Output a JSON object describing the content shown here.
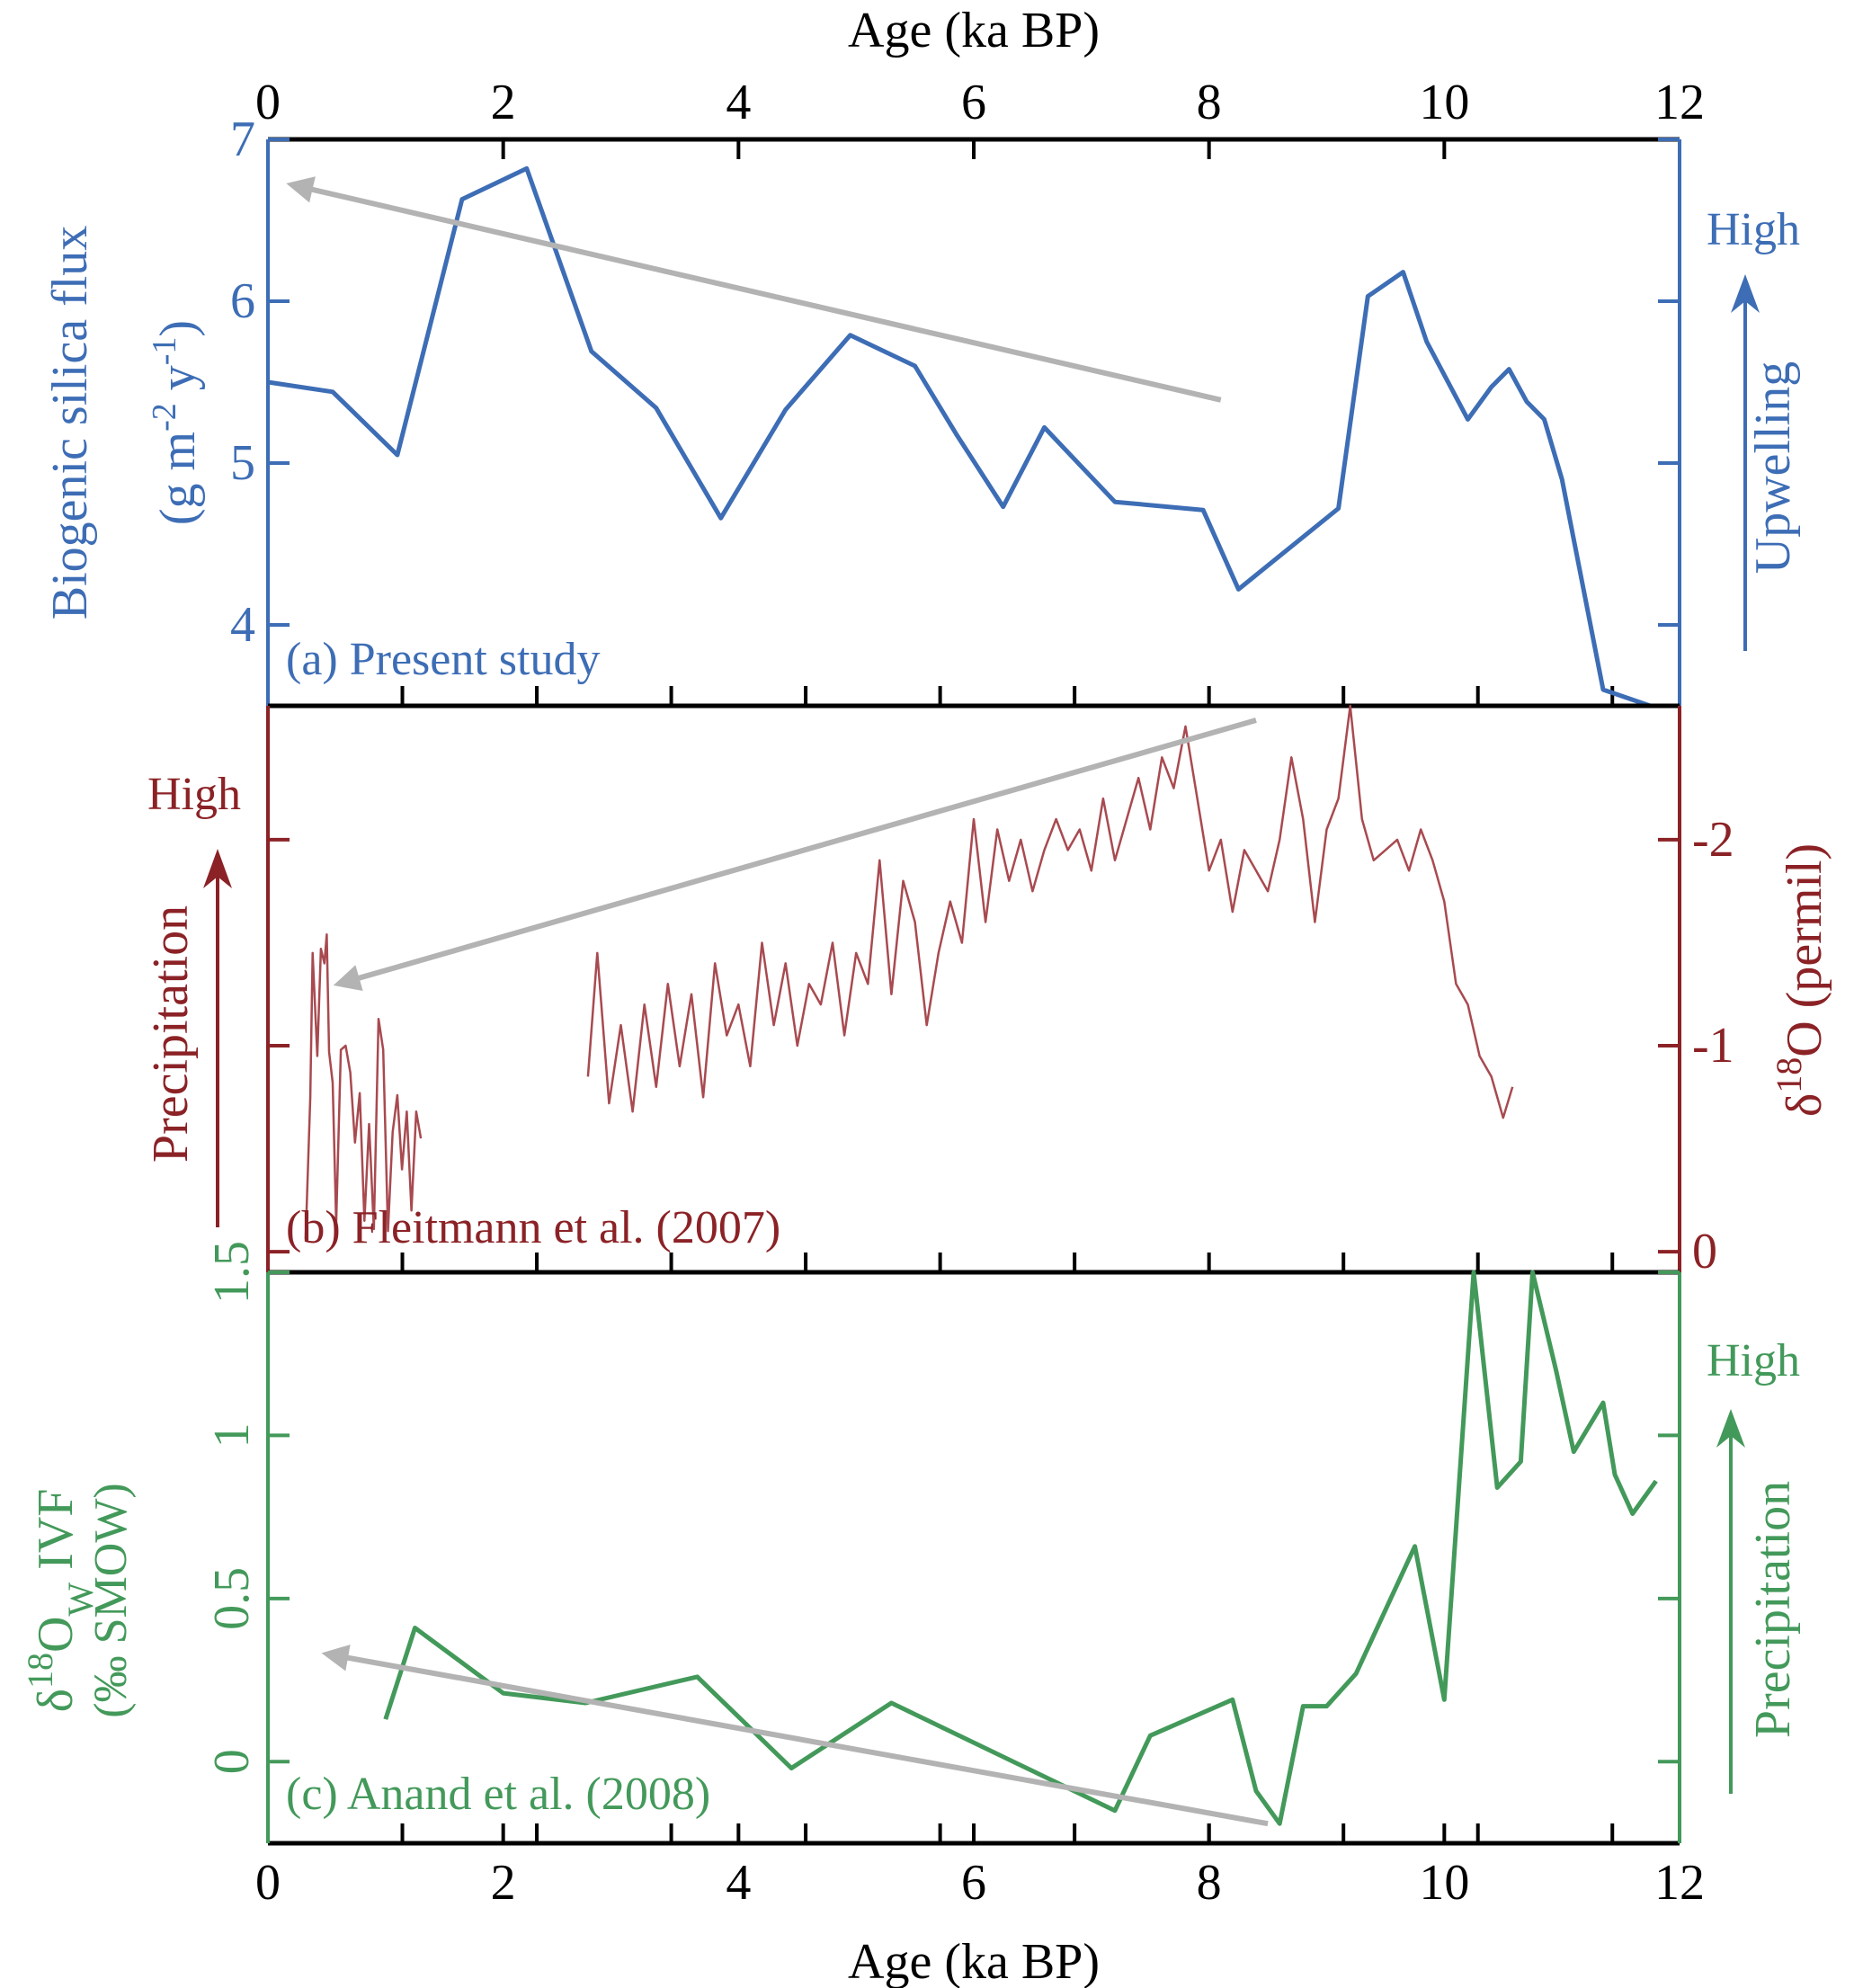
{
  "chart_data": {
    "type": "line",
    "layout": "three vertically stacked panels sharing the age axis",
    "x_axis": {
      "label": "Age (ka BP)",
      "range": [
        0,
        12
      ],
      "ticks": [
        0,
        2,
        4,
        6,
        8,
        10,
        12
      ],
      "tick_labels": [
        "0",
        "2",
        "4",
        "6",
        "8",
        "10",
        "12"
      ]
    },
    "panels": [
      {
        "id": "a",
        "panel_label": "(a) Present study",
        "color": "#3d6db5",
        "ylabel_lines": [
          "Biogenic silica flux",
          "(g m-2 y-1)"
        ],
        "ylabel_main": "Biogenic silica flux",
        "ylabel_unit_prefix": "(g m",
        "ylabel_unit_sup1": "-2",
        "ylabel_unit_mid": " y",
        "ylabel_unit_sup2": "-1",
        "ylabel_unit_suffix": ")",
        "y_axis_side": "left",
        "ylim": [
          3.5,
          7
        ],
        "yticks": [
          4,
          5,
          6,
          7
        ],
        "ytick_labels": [
          "4",
          "5",
          "6",
          "7"
        ],
        "indicator": {
          "side": "right",
          "text": "Upwelling",
          "high": "High"
        },
        "trend_arrow": {
          "from": [
            8.1,
            5.39
          ],
          "to": [
            0.2,
            6.72
          ],
          "color": "#b3b3b3"
        },
        "series": [
          {
            "name": "Biogenic silica flux",
            "x": [
              0.0,
              0.55,
              1.1,
              1.65,
              2.2,
              2.75,
              3.3,
              3.85,
              4.4,
              4.95,
              5.5,
              5.85,
              6.25,
              6.6,
              7.2,
              7.95,
              8.25,
              9.1,
              9.35,
              9.65,
              9.85,
              10.2,
              10.4,
              10.55,
              10.7,
              10.85,
              11.0,
              11.35,
              11.75
            ],
            "y": [
              5.5,
              5.44,
              5.05,
              6.63,
              6.82,
              5.69,
              5.34,
              4.66,
              5.33,
              5.79,
              5.6,
              5.18,
              4.73,
              5.22,
              4.76,
              4.71,
              4.22,
              4.72,
              6.03,
              6.18,
              5.75,
              5.27,
              5.47,
              5.58,
              5.38,
              5.27,
              4.9,
              3.6,
              3.5
            ]
          }
        ]
      },
      {
        "id": "b",
        "panel_label": "(b) Fleitmann et al. (2007)",
        "color": "#8b2226",
        "line_color": "#a84a50",
        "ylabel_main": "δ18O (permil)",
        "ylabel_delta": "δ",
        "ylabel_sup": "18",
        "ylabel_rest": "O (permil)",
        "y_axis_side": "right",
        "y_inverted": true,
        "ylim": [
          0.1,
          -2.65
        ],
        "yticks": [
          0,
          -1,
          -2
        ],
        "ytick_labels": [
          "0",
          "-1",
          "-2"
        ],
        "indicator": {
          "side": "left",
          "text": "Precipitation",
          "high": "High"
        },
        "trend_arrow": {
          "from": [
            8.4,
            -2.58
          ],
          "to": [
            0.6,
            -1.3
          ],
          "color": "#b3b3b3"
        },
        "series": [
          {
            "name": "δ18O segment 1",
            "x": [
              0.32,
              0.36,
              0.38,
              0.42,
              0.45,
              0.48,
              0.5,
              0.52,
              0.55,
              0.58,
              0.62,
              0.66,
              0.7,
              0.74,
              0.78,
              0.82,
              0.86,
              0.9,
              0.94,
              0.98,
              1.02,
              1.06,
              1.1,
              1.14,
              1.18,
              1.22,
              1.26,
              1.3
            ],
            "y": [
              -0.06,
              -0.75,
              -1.45,
              -0.95,
              -1.47,
              -1.4,
              -1.54,
              -0.97,
              -0.82,
              -0.14,
              -0.98,
              -1.0,
              -0.87,
              -0.53,
              -0.77,
              -0.15,
              -0.62,
              -0.11,
              -1.13,
              -0.98,
              -0.1,
              -0.58,
              -0.76,
              -0.4,
              -0.68,
              -0.2,
              -0.68,
              -0.55
            ]
          },
          {
            "name": "δ18O segment 2",
            "x": [
              2.72,
              2.8,
              2.9,
              3.0,
              3.1,
              3.2,
              3.3,
              3.4,
              3.5,
              3.6,
              3.7,
              3.8,
              3.9,
              4.0,
              4.1,
              4.2,
              4.3,
              4.4,
              4.5,
              4.6,
              4.7,
              4.8,
              4.9,
              5.0,
              5.1,
              5.2,
              5.3,
              5.4,
              5.5,
              5.6,
              5.7,
              5.8,
              5.9,
              6.0,
              6.1,
              6.2,
              6.3,
              6.4,
              6.5,
              6.6,
              6.7,
              6.8,
              6.9,
              7.0,
              7.1,
              7.2,
              7.3,
              7.4,
              7.5,
              7.6,
              7.7,
              7.8,
              7.9,
              8.0,
              8.1,
              8.2,
              8.3,
              8.4,
              8.5,
              8.6,
              8.7,
              8.8,
              8.9,
              9.0,
              9.1,
              9.2,
              9.3,
              9.4,
              9.5,
              9.6,
              9.7,
              9.8,
              9.9,
              10.0,
              10.1,
              10.2,
              10.3,
              10.4,
              10.5,
              10.58
            ],
            "y": [
              -0.85,
              -1.45,
              -0.72,
              -1.1,
              -0.68,
              -1.2,
              -0.8,
              -1.3,
              -0.9,
              -1.25,
              -0.75,
              -1.4,
              -1.05,
              -1.2,
              -0.9,
              -1.5,
              -1.1,
              -1.4,
              -1.0,
              -1.3,
              -1.2,
              -1.5,
              -1.05,
              -1.45,
              -1.3,
              -1.9,
              -1.25,
              -1.8,
              -1.6,
              -1.1,
              -1.45,
              -1.7,
              -1.5,
              -2.1,
              -1.6,
              -2.05,
              -1.8,
              -2.0,
              -1.75,
              -1.95,
              -2.1,
              -1.95,
              -2.05,
              -1.85,
              -2.2,
              -1.9,
              -2.1,
              -2.3,
              -2.05,
              -2.4,
              -2.25,
              -2.55,
              -2.2,
              -1.85,
              -2.0,
              -1.65,
              -1.95,
              -1.85,
              -1.75,
              -2.0,
              -2.4,
              -2.1,
              -1.6,
              -2.05,
              -2.2,
              -2.65,
              -2.1,
              -1.9,
              -1.95,
              -2.0,
              -1.85,
              -2.05,
              -1.9,
              -1.7,
              -1.3,
              -1.2,
              -0.95,
              -0.85,
              -0.65,
              -0.8
            ]
          }
        ]
      },
      {
        "id": "c",
        "panel_label": "(c) Anand et al. (2008)",
        "color": "#43995a",
        "ylabel_lines": [
          "δ18Ow IVF",
          "(‰ SMOW)"
        ],
        "ylabel_delta": "δ",
        "ylabel_sup": "18",
        "ylabel_o": "O",
        "ylabel_sub": "W",
        "ylabel_rest": " IVF",
        "ylabel_unit": "(‰ SMOW)",
        "y_axis_side": "left",
        "y_inverted": true,
        "ylim": [
          -0.25,
          1.5
        ],
        "yticks": [
          0,
          0.5,
          1,
          1.5
        ],
        "ytick_labels": [
          "0",
          "0.5",
          "1",
          "1.5"
        ],
        "indicator": {
          "side": "right",
          "text": "Precipitation",
          "high": "High"
        },
        "trend_arrow": {
          "from": [
            8.5,
            -0.19
          ],
          "to": [
            0.5,
            0.33
          ],
          "color": "#b3b3b3"
        },
        "series": [
          {
            "name": "δ18Ow IVF",
            "x": [
              1.0,
              1.25,
              2.0,
              2.7,
              3.65,
              4.45,
              5.3,
              7.2,
              7.5,
              8.2,
              8.4,
              8.6,
              8.8,
              9.0,
              9.25,
              9.75,
              10.0,
              10.25,
              10.45,
              10.65,
              10.75,
              10.95,
              11.1,
              11.35,
              11.45,
              11.6,
              11.8
            ],
            "y": [
              0.13,
              0.41,
              0.21,
              0.18,
              0.26,
              -0.02,
              0.18,
              -0.15,
              0.08,
              0.19,
              -0.09,
              -0.19,
              0.17,
              0.17,
              0.27,
              0.66,
              0.19,
              1.5,
              0.84,
              0.92,
              1.5,
              1.2,
              0.95,
              1.1,
              0.88,
              0.76,
              0.86
            ]
          }
        ]
      }
    ]
  }
}
